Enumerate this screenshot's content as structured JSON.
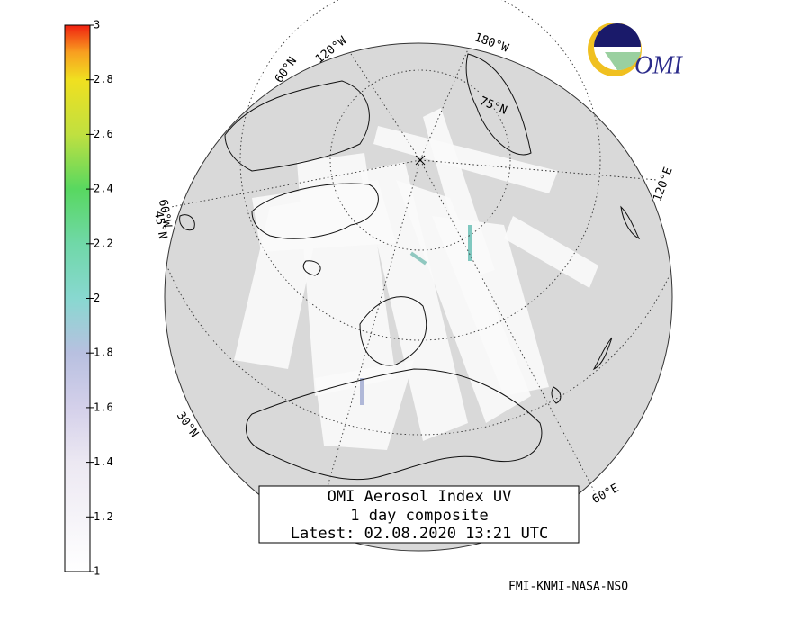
{
  "colorbar": {
    "lim": [
      1,
      3
    ],
    "ticks": [
      1,
      1.2,
      1.4,
      1.6,
      1.8,
      2,
      2.2,
      2.4,
      2.6,
      2.8,
      3
    ]
  },
  "graticule_labels": [
    "60°N",
    "120°W",
    "180°W",
    "75°N",
    "120°E",
    "60°E",
    "30°N",
    "60°W",
    "45°N"
  ],
  "logo": "OMI",
  "title_box": {
    "lines": [
      "OMI Aerosol Index UV",
      "1 day composite",
      "Latest: 02.08.2020 13:21 UTC"
    ]
  },
  "credit": "FMI-KNMI-NASA-NSO"
}
